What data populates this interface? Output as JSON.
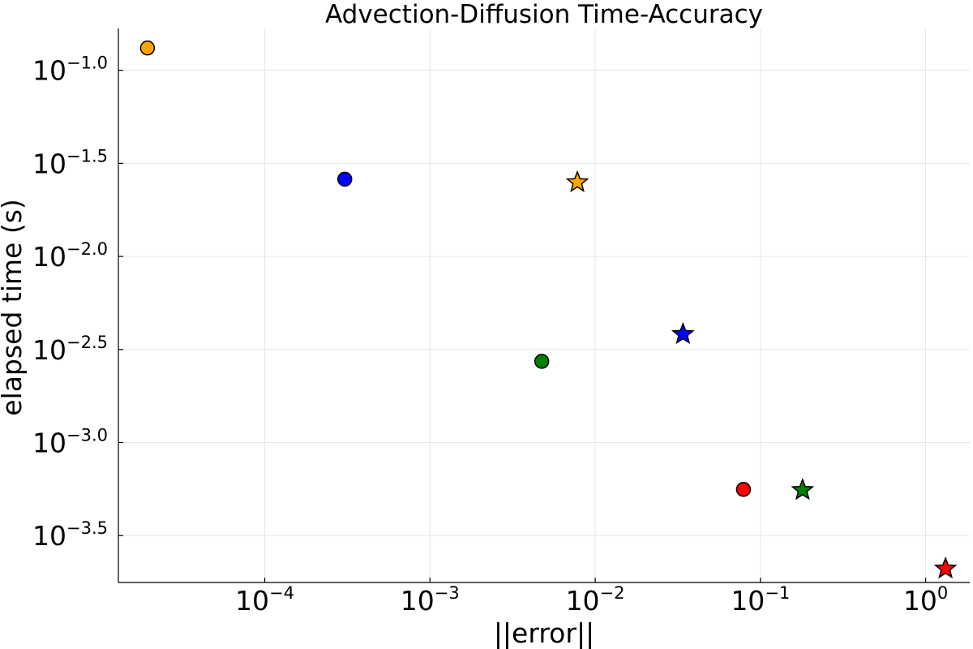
{
  "chart_data": {
    "type": "scatter",
    "title": "Advection-Diffusion Time-Accuracy",
    "xlabel": "||error||",
    "ylabel": "elapsed time (s)",
    "xscale": "log10",
    "yscale": "log10",
    "xlim": [
      1.3e-05,
      1.85
    ],
    "ylim": [
      0.000177,
      0.168
    ],
    "grid": true,
    "legend": "none",
    "xticks": [
      {
        "value": 0.0001,
        "base": "10",
        "exp": "−4"
      },
      {
        "value": 0.001,
        "base": "10",
        "exp": "−3"
      },
      {
        "value": 0.01,
        "base": "10",
        "exp": "−2"
      },
      {
        "value": 0.1,
        "base": "10",
        "exp": "−1"
      },
      {
        "value": 1,
        "base": "10",
        "exp": "0"
      }
    ],
    "yticks": [
      {
        "value": 0.1,
        "base": "10",
        "exp": "−1.0"
      },
      {
        "value": 0.0316228,
        "base": "10",
        "exp": "−1.5"
      },
      {
        "value": 0.01,
        "base": "10",
        "exp": "−2.0"
      },
      {
        "value": 0.00316228,
        "base": "10",
        "exp": "−2.5"
      },
      {
        "value": 0.001,
        "base": "10",
        "exp": "−3.0"
      },
      {
        "value": 0.000316228,
        "base": "10",
        "exp": "−3.5"
      }
    ],
    "points": [
      {
        "x": 1.95e-05,
        "y": 0.1318,
        "marker": "circle",
        "color": "#FFA500"
      },
      {
        "x": 0.000305,
        "y": 0.026,
        "marker": "circle",
        "color": "#0000FF"
      },
      {
        "x": 0.00475,
        "y": 0.00273,
        "marker": "circle",
        "color": "#008000"
      },
      {
        "x": 0.079,
        "y": 0.00056,
        "marker": "circle",
        "color": "#FF0000"
      },
      {
        "x": 0.0078,
        "y": 0.025,
        "marker": "star",
        "color": "#FFA500"
      },
      {
        "x": 0.034,
        "y": 0.00382,
        "marker": "star",
        "color": "#0000FF"
      },
      {
        "x": 0.18,
        "y": 0.000555,
        "marker": "star",
        "color": "#008000"
      },
      {
        "x": 1.32,
        "y": 0.00021,
        "marker": "star",
        "color": "#FF0000"
      }
    ]
  }
}
